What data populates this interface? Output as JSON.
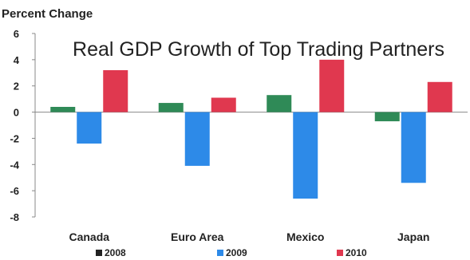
{
  "chart_data": {
    "type": "bar",
    "title": "Real GDP Growth of Top Trading Partners",
    "ylabel": "Percent Change",
    "xlabel": "",
    "ylim": [
      -8,
      6
    ],
    "yticks": [
      6,
      4,
      2,
      0,
      -2,
      -4,
      -6,
      -8
    ],
    "categories": [
      "Canada",
      "Euro Area",
      "Mexico",
      "Japan"
    ],
    "series": [
      {
        "name": "2008",
        "color": "#2f8a57",
        "values": [
          0.4,
          0.7,
          1.3,
          -0.7
        ]
      },
      {
        "name": "2009",
        "color": "#2d8ae8",
        "values": [
          -2.4,
          -4.1,
          -6.6,
          -5.4
        ]
      },
      {
        "name": "2010",
        "color": "#e0384f",
        "values": [
          3.2,
          1.1,
          4.0,
          2.3
        ]
      }
    ],
    "grid": false,
    "legend_position": "bottom"
  }
}
